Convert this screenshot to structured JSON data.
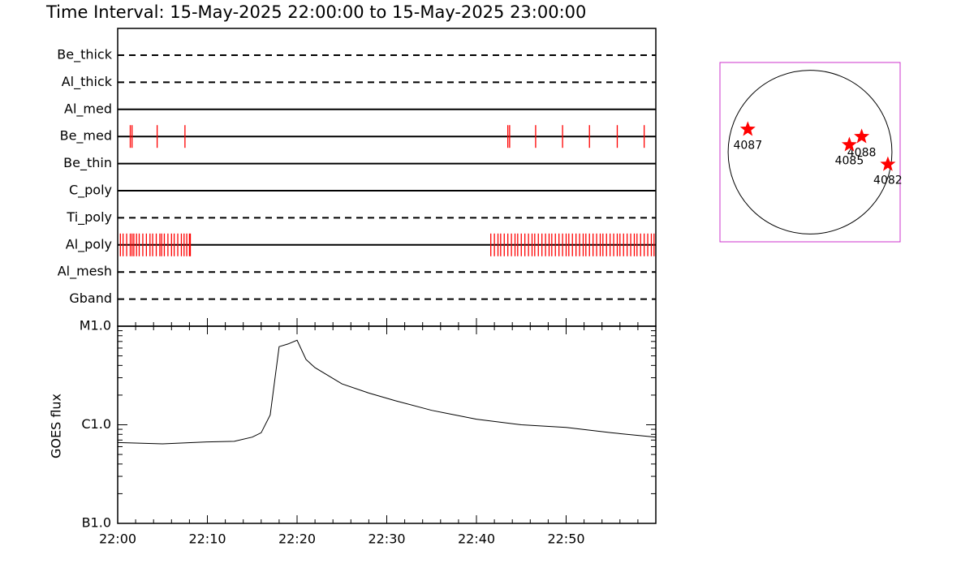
{
  "chart_data": [
    {
      "type": "event",
      "title": "Time Interval: 15-May-2025 22:00:00 to 15-May-2025 23:00:00",
      "categories": [
        "Be_thick",
        "Al_thick",
        "Al_med",
        "Be_med",
        "Be_thin",
        "C_poly",
        "Ti_poly",
        "Al_poly",
        "Al_mesh",
        "Gband"
      ],
      "line_styles": [
        "dashed",
        "dashed",
        "solid",
        "solid",
        "solid",
        "solid",
        "dashed",
        "solid",
        "dashed",
        "dashed"
      ],
      "events": [
        [],
        [],
        [],
        [
          1.4,
          1.6,
          4.4,
          7.5,
          43.5,
          43.7,
          46.6,
          49.6,
          52.6,
          55.7,
          58.7
        ],
        [],
        [],
        [],
        [
          0.3,
          0.6,
          1.0,
          1.4,
          1.6,
          1.8,
          2.1,
          2.4,
          2.8,
          3.2,
          3.6,
          3.9,
          4.3,
          4.7,
          4.9,
          5.2,
          5.6,
          6.0,
          6.3,
          6.7,
          7.1,
          7.4,
          7.7,
          8.0,
          8.1,
          41.6,
          42.0,
          42.4,
          42.7,
          43.1,
          43.5,
          43.9,
          44.3,
          44.6,
          45.0,
          45.4,
          45.8,
          46.2,
          46.5,
          46.9,
          47.3,
          47.7,
          48.1,
          48.4,
          48.8,
          49.2,
          49.6,
          50.0,
          50.3,
          50.7,
          51.1,
          51.5,
          51.9,
          52.2,
          52.6,
          53.0,
          53.4,
          53.8,
          54.1,
          54.5,
          54.9,
          55.3,
          55.7,
          56.0,
          56.4,
          56.8,
          57.2,
          57.6,
          57.9,
          58.3,
          58.7,
          59.1,
          59.5,
          59.8
        ],
        [],
        []
      ],
      "color": "#ff0000",
      "xlim": [
        0,
        60
      ]
    },
    {
      "type": "line",
      "ylabel": "GOES flux",
      "log_scale": true,
      "x": [
        0,
        5,
        10,
        13,
        15,
        16,
        17,
        18,
        19,
        20,
        21,
        22,
        25,
        28,
        31,
        35,
        40,
        45,
        50,
        55,
        60
      ],
      "values": [
        6.6e-07,
        6.4e-07,
        6.7e-07,
        6.8e-07,
        7.5e-07,
        8.3e-07,
        1.26e-06,
        6.2e-06,
        6.6e-06,
        7.2e-06,
        4.6e-06,
        3.8e-06,
        2.6e-06,
        2.1e-06,
        1.75e-06,
        1.4e-06,
        1.14e-06,
        1e-06,
        9.4e-07,
        8.3e-07,
        7.5e-07
      ],
      "color": "#000000",
      "xlim": [
        0,
        60
      ],
      "xticks": [
        {
          "value": 0,
          "label": "22:00"
        },
        {
          "value": 10,
          "label": "22:10"
        },
        {
          "value": 20,
          "label": "22:20"
        },
        {
          "value": 30,
          "label": "22:30"
        },
        {
          "value": 40,
          "label": "22:40"
        },
        {
          "value": 50,
          "label": "22:50"
        }
      ],
      "ylim": [
        1e-07,
        1e-05
      ],
      "yticks": [
        {
          "value": 1e-07,
          "label": "B1.0"
        },
        {
          "value": 1e-06,
          "label": "C1.0"
        },
        {
          "value": 1e-05,
          "label": "M1.0"
        }
      ]
    },
    {
      "type": "scatter",
      "labels": [
        "4087",
        "4088",
        "4085",
        "4082"
      ],
      "x": [
        -0.76,
        0.63,
        0.48,
        0.95
      ],
      "y": [
        0.28,
        0.19,
        0.09,
        -0.15
      ],
      "color": "#ff0000",
      "frame_color": "#cc33cc",
      "xlim": [
        -1.1,
        1.1
      ],
      "ylim": [
        -1.1,
        1.1
      ]
    }
  ]
}
